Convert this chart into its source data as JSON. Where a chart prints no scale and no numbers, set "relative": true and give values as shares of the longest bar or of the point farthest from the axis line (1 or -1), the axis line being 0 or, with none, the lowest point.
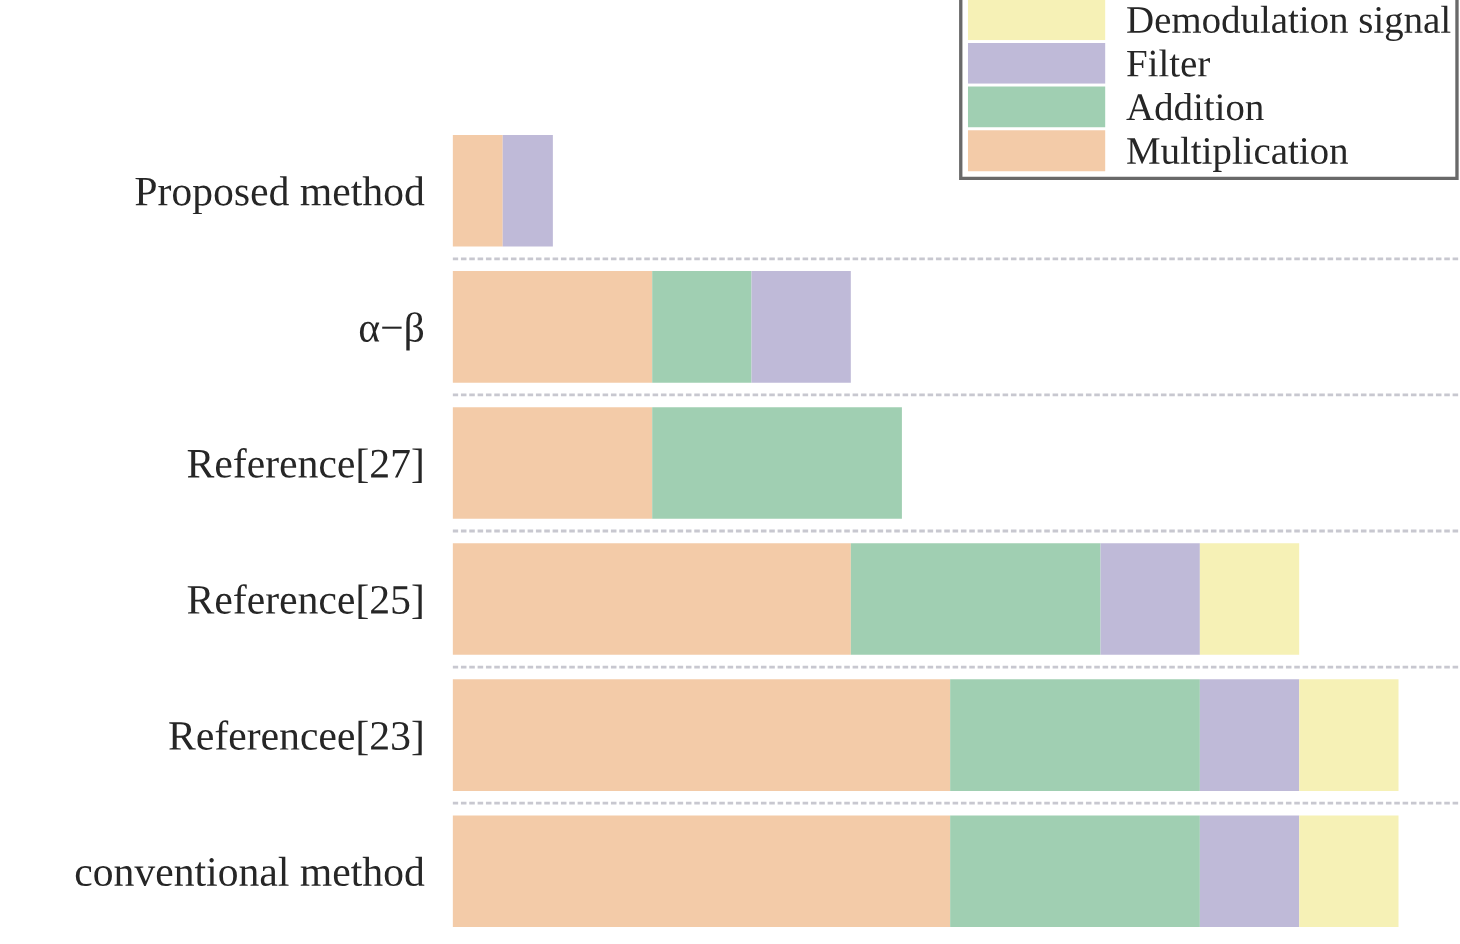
{
  "chart_data": {
    "type": "bar",
    "orientation": "horizontal",
    "stacked": true,
    "relative": true,
    "categories": [
      "Proposed method",
      "α−β",
      "Reference[27]",
      "Reference[25]",
      "Referencee[23]",
      "conventional method"
    ],
    "series": [
      {
        "name": "Multiplication",
        "color": "#f3cba8",
        "values": [
          0.053,
          0.211,
          0.211,
          0.421,
          0.526,
          0.526
        ]
      },
      {
        "name": "Addition",
        "color": "#a0cfb2",
        "values": [
          0,
          0.105,
          0.264,
          0.264,
          0.264,
          0.264
        ]
      },
      {
        "name": "Filter",
        "color": "#bfbad8",
        "values": [
          0.053,
          0.105,
          0,
          0.105,
          0.105,
          0.105
        ]
      },
      {
        "name": "Demodulation signal",
        "color": "#f6f1b6",
        "values": [
          0,
          0,
          0,
          0.105,
          0.105,
          0.105
        ]
      }
    ],
    "legend": "top right"
  }
}
